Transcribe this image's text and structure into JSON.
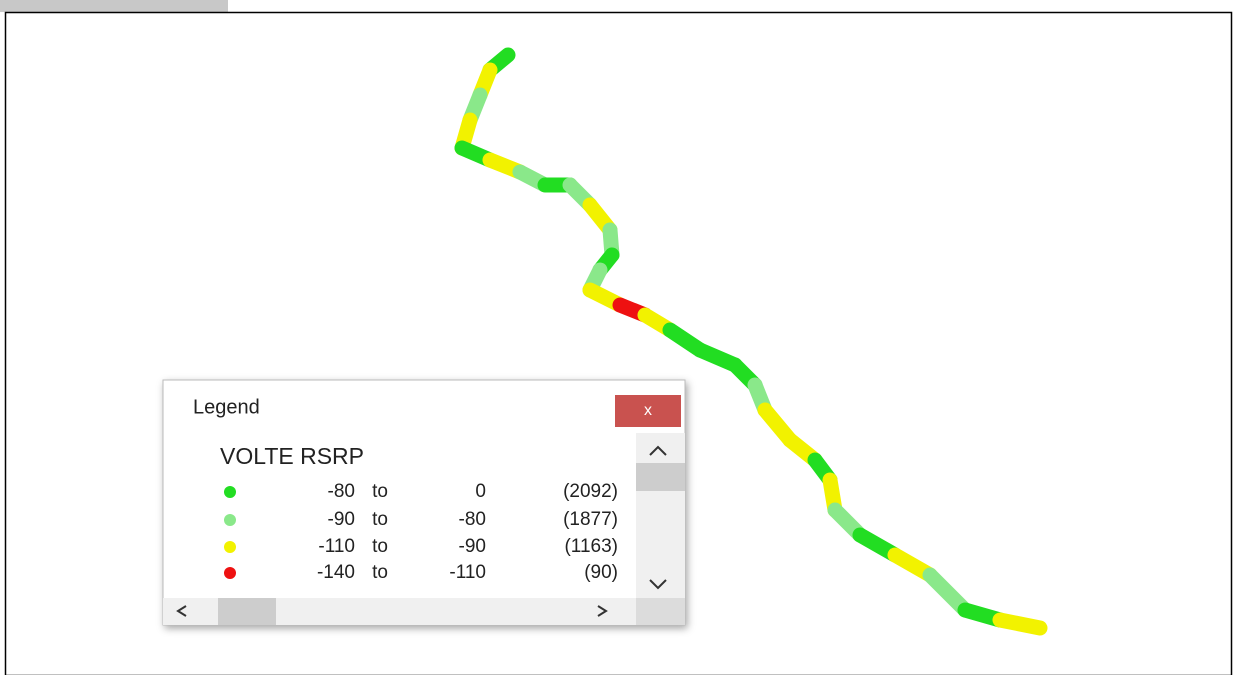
{
  "legend": {
    "title": "Legend",
    "close": "x",
    "layer": "VOLTE RSRP",
    "entries": [
      {
        "color": "#22dd22",
        "from": "-80",
        "word": "to",
        "to": "0",
        "count": "(2092)"
      },
      {
        "color": "#8ae88a",
        "from": "-90",
        "word": "to",
        "to": "-80",
        "count": "(1877)"
      },
      {
        "color": "#f2f200",
        "from": "-110",
        "word": "to",
        "to": "-90",
        "count": "(1163)"
      },
      {
        "color": "#ee1111",
        "from": "-140",
        "word": "to",
        "to": "-110",
        "count": "(90)"
      }
    ]
  }
}
